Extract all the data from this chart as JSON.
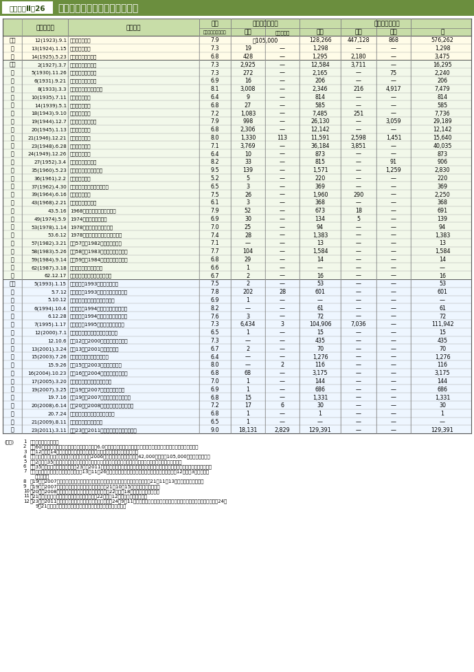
{
  "title_label": "附属資料Ⅱ－26",
  "title_text": "関東大地震以後の主な地震災害",
  "rows": [
    [
      "大正",
      "12(1923).9.1",
      "関　東　地　震",
      "7.9",
      "約105,000",
      "—",
      "128,266",
      "447,128",
      "868",
      "576,262"
    ],
    [
      "〃",
      "13(1924).1.15",
      "丹　沢　地　震",
      "7.3",
      "19",
      "—",
      "1,298",
      "—",
      "—",
      "1,298"
    ],
    [
      "〃",
      "14(1925).5.23",
      "北　但　馬　地　震",
      "6.8",
      "428",
      "—",
      "1,295",
      "2,180",
      "—",
      "3,475"
    ],
    [
      "昭和",
      "2(1927).3.7",
      "北　丹　後　地　震",
      "7.3",
      "2,925",
      "—",
      "12,584",
      "3,711",
      "—",
      "16,295"
    ],
    [
      "〃",
      "5(1930).11.26",
      "北　伊　豆　地　震",
      "7.3",
      "272",
      "—",
      "2,165",
      "—",
      "75",
      "2,240"
    ],
    [
      "〃",
      "6(1931).9.21",
      "西　埼　玉　地　震",
      "6.9",
      "16",
      "—",
      "206",
      "—",
      "—",
      "206"
    ],
    [
      "〃",
      "8(1933).3.3",
      "昭　和　三　陸　地　震",
      "8.1",
      "3,008",
      "—",
      "2,346",
      "216",
      "4,917",
      "7,479"
    ],
    [
      "〃",
      "10(1935).7.11",
      "静　岡　地　震",
      "6.4",
      "9",
      "—",
      "814",
      "—",
      "—",
      "814"
    ],
    [
      "〃",
      "14(1939).5.1",
      "男　鹿　地　震",
      "6.8",
      "27",
      "—",
      "585",
      "—",
      "—",
      "585"
    ],
    [
      "〃",
      "18(1943).9.10",
      "鳥　取　地　震",
      "7.2",
      "1,083",
      "—",
      "7,485",
      "251",
      "—",
      "7,736"
    ],
    [
      "〃",
      "19(1944).12.7",
      "東　南　海　地　震",
      "7.9",
      "998",
      "—",
      "26,130",
      "—",
      "3,059",
      "29,189"
    ],
    [
      "〃",
      "20(1945).1.13",
      "三　河　地　震",
      "6.8",
      "2,306",
      "—",
      "12,142",
      "—",
      "—",
      "12,142"
    ],
    [
      "〃",
      "21(1946).12.21",
      "南　海　地　震",
      "8.0",
      "1,330",
      "113",
      "11,591",
      "2,598",
      "1,451",
      "15,640"
    ],
    [
      "〃",
      "23(1948).6.28",
      "福　井　地　震",
      "7.1",
      "3,769",
      "—",
      "36,184",
      "3,851",
      "—",
      "40,035"
    ],
    [
      "〃",
      "24(1949).12.26",
      "今　市　地　震",
      "6.4",
      "10",
      "—",
      "873",
      "—",
      "—",
      "873"
    ],
    [
      "〃",
      "27(1952).3.4",
      "十　勝　沖　地　震",
      "8.2",
      "33",
      "—",
      "815",
      "—",
      "91",
      "906"
    ],
    [
      "〃",
      "35(1960).5.23",
      "チ　リ　地　震　津　波",
      "9.5",
      "139",
      "—",
      "1,571",
      "—",
      "1,259",
      "2,830"
    ],
    [
      "〃",
      "36(1961).2.2",
      "長　岡　地　震",
      "5.2",
      "5",
      "—",
      "220",
      "—",
      "—",
      "220"
    ],
    [
      "〃",
      "37(1962).4.30",
      "宮　城　県　北　部　地　震",
      "6.5",
      "3",
      "—",
      "369",
      "—",
      "—",
      "369"
    ],
    [
      "〃",
      "39(1964).6.16",
      "新　潟　地　震",
      "7.5",
      "26",
      "—",
      "1,960",
      "290",
      "—",
      "2,250"
    ],
    [
      "〃",
      "43(1968).2.21",
      "え　び　の　地　震",
      "6.1",
      "3",
      "—",
      "368",
      "—",
      "—",
      "368"
    ],
    [
      "〃",
      "43.5.16",
      "1968年　十　勝　沖　地　震",
      "7.9",
      "52",
      "—",
      "673",
      "18",
      "—",
      "691"
    ],
    [
      "〃",
      "49(1974).5.9",
      "1974年伊豆半島沖地震",
      "6.9",
      "30",
      "—",
      "134",
      "5",
      "—",
      "139"
    ],
    [
      "〃",
      "53(1978).1.14",
      "1978年伊豆大島近海の地震",
      "7.0",
      "25",
      "—",
      "94",
      "—",
      "—",
      "94"
    ],
    [
      "〃",
      "53.6.12",
      "1978年　宮　城　県　沖　地　震",
      "7.4",
      "28",
      "—",
      "1,383",
      "—",
      "—",
      "1,383"
    ],
    [
      "〃",
      "57(1982).3.21",
      "昭和57年（1982年）浦河沖地震",
      "7.1",
      "—",
      "—",
      "13",
      "—",
      "—",
      "13"
    ],
    [
      "〃",
      "58(1983).5.26",
      "昭和58年（1983年）日本海中部地震",
      "7.7",
      "104",
      "—",
      "1,584",
      "—",
      "—",
      "1,584"
    ],
    [
      "〃",
      "59(1984).9.14",
      "昭和59年（1984年）長野県西部地震",
      "6.8",
      "29",
      "—",
      "14",
      "—",
      "—",
      "14"
    ],
    [
      "〃",
      "62(1987).3.18",
      "日向灘を震源とする地震",
      "6.6",
      "1",
      "—",
      "—",
      "—",
      "—",
      "—"
    ],
    [
      "〃",
      "62.12.17",
      "千葉県東方沖を震源とする地震",
      "6.7",
      "2",
      "—",
      "16",
      "—",
      "—",
      "16"
    ],
    [
      "平成",
      "5(1993).1.15",
      "平成５年（1993年）釧路沖地震",
      "7.5",
      "2",
      "—",
      "53",
      "—",
      "—",
      "53"
    ],
    [
      "〃",
      "5.7.12",
      "平成５年（1993年）北海道南西沖地震",
      "7.8",
      "202",
      "28",
      "601",
      "—",
      "—",
      "601"
    ],
    [
      "〃",
      "5.10.12",
      "東海道はるか沖を震源とする地震",
      "6.9",
      "1",
      "—",
      "—",
      "—",
      "—",
      "—"
    ],
    [
      "〃",
      "6(1994).10.4",
      "平成６年（1994年）北海道東方沖地震",
      "8.2",
      "—",
      "—",
      "61",
      "—",
      "—",
      "61"
    ],
    [
      "〃",
      "6.12.28",
      "平成６年（1994年）三陸はるか沖地震",
      "7.6",
      "3",
      "—",
      "72",
      "—",
      "—",
      "72"
    ],
    [
      "〃",
      "7(1995).1.17",
      "平成７年（1995年）兵庫県南部地震",
      "7.3",
      "6,434",
      "3",
      "104,906",
      "7,036",
      "—",
      "111,942"
    ],
    [
      "〃",
      "12(2000).7.1",
      "新島・神津島近海を震源とする地震",
      "6.5",
      "1",
      "—",
      "15",
      "—",
      "—",
      "15"
    ],
    [
      "〃",
      "12.10.6",
      "平成12年（2000年）鳥取県西部地震",
      "7.3",
      "—",
      "—",
      "435",
      "—",
      "—",
      "435"
    ],
    [
      "〃",
      "13(2001).3.24",
      "平成13年（2001年）芸予地震",
      "6.7",
      "2",
      "—",
      "70",
      "—",
      "—",
      "70"
    ],
    [
      "〃",
      "15(2003).7.26",
      "宮城県北部を震源とする地震",
      "6.4",
      "—",
      "—",
      "1,276",
      "—",
      "—",
      "1,276"
    ],
    [
      "〃",
      "15.9.26",
      "平成15年（2003年）十勝沖地震",
      "8.0",
      "—",
      "2",
      "116",
      "—",
      "—",
      "116"
    ],
    [
      "〃",
      "16(2004).10.23",
      "平成16年（2004年）新潟県中越地震",
      "6.8",
      "68",
      "—",
      "3,175",
      "—",
      "—",
      "3,175"
    ],
    [
      "〃",
      "17(2005).3.20",
      "福岡県西方沖を震源とする地震",
      "7.0",
      "1",
      "—",
      "144",
      "—",
      "—",
      "144"
    ],
    [
      "〃",
      "19(2007).3.25",
      "平成19年（2007年）能登半島地震",
      "6.9",
      "1",
      "—",
      "686",
      "—",
      "—",
      "686"
    ],
    [
      "〃",
      "19.7.16",
      "平成19年（2007年）新潟県中越沖地震",
      "6.8",
      "15",
      "—",
      "1,331",
      "—",
      "—",
      "1,331"
    ],
    [
      "〃",
      "20(2008).6.14",
      "平成20年（2008年）岩手・宮城内陸地震",
      "7.2",
      "17",
      "6",
      "30",
      "—",
      "—",
      "30"
    ],
    [
      "〃",
      "20.7.24",
      "岩手県沿岸北部を震源とする地震",
      "6.8",
      "1",
      "—",
      "1",
      "—",
      "—",
      "1"
    ],
    [
      "〃",
      "21(2009).8.11",
      "駿河湾を震源とする地震",
      "6.5",
      "1",
      "—",
      "—",
      "—",
      "—",
      "—"
    ],
    [
      "〃",
      "23(2011).3.11",
      "平成23年（2011年）東北地方太平洋沖地震",
      "9.0",
      "18,131",
      "2,829",
      "129,391",
      "—",
      "—",
      "129,391"
    ]
  ],
  "footnotes": [
    [
      "(備考)",
      "1",
      "消防庁調べにより作成"
    ],
    [
      "",
      "2",
      "昭和60年以降の地震については，マグニチュード6.0以上で，死者の生じたもの又は甸大な被害が生じたものを掲げている。"
    ],
    [
      "",
      "3",
      "大正12年かり14年までの地震のマグニチュードについては，理科年表より抜粹"
    ],
    [
      "",
      "4",
      "関東地震の死者・行方不明者数は，理科年表（2006年版）の改訂に基づき，絀42,000人から約105,000人へと変更した。"
    ],
    [
      "",
      "5",
      "昭和2年かゃ35年までの地震のマグニチュードについては，気象庁において再計算が行われた数値を掲げている。"
    ],
    [
      "",
      "6",
      "昭和35年のチリ地震津波及び平成23年（2011年）東北地方太平洋沖地震のマグニチュードは，モーメントマグニチュードである。"
    ],
    [
      "",
      "7",
      "新島・神津島近海を震源とする地震，平13年11月26日現在の数値である。家屋損失戸数の全壊欄には，平12年台風3号による被"
    ],
    [
      "",
      "",
      "害を含む）"
    ],
    [
      "",
      "8",
      "幹19年（2007年）能登半島地震及び岩手県沿岸北部を震源とする地震については，幹21年11月13日現在の数値である。"
    ],
    [
      "",
      "9",
      "幹19年（2007年）新潟県中越沖地震については，幹21年10月15日現在の数値である。"
    ],
    [
      "",
      "10",
      "幹20年（2008年）岩手・宮城内陸地震については，幹22年６月18日現在の数値である。"
    ],
    [
      "",
      "11",
      "幹21年の駿河湾を震源とする地震については，幹22年３月12日現在の数値である。"
    ],
    [
      "",
      "12",
      "幹23年（2011年）東北地方太平洋沖地震については，幹24年9月11日現在の数値（被害状況のうち福島県の人的被害については，幹24年"
    ],
    [
      "",
      "",
      "9月21日現在の状況）であり，住宅全壊数に焼失及び流失を含む。"
    ]
  ]
}
